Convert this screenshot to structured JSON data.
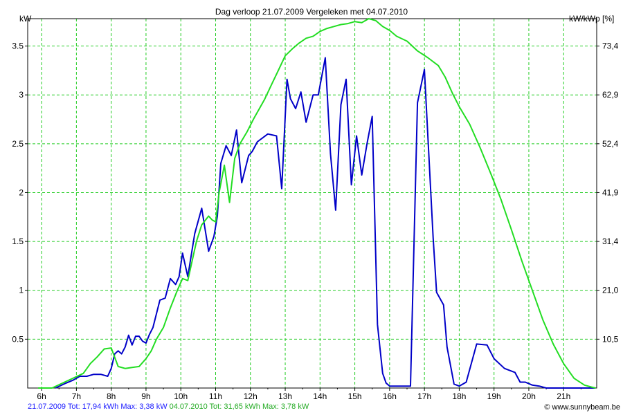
{
  "title": "Dag  verloop 21.07.2009   Vergeleken met 04.07.2010",
  "unit_left": "kW",
  "unit_right": "kW/kWp [%]",
  "footer": {
    "series1_text": "21.07.2009 Tot: 17,94 kWh Max: 3,38 kW",
    "series2_text": "04.07.2010 Tot: 31,65 kWh Max: 3,78 kW"
  },
  "credit": "© www.sunnybeam.be",
  "colors": {
    "series1": "#0000c8",
    "series2": "#22dd22",
    "grid": "#22cc22"
  },
  "chart_data": {
    "type": "line",
    "title": "Dag  verloop 21.07.2009   Vergeleken met 04.07.2010",
    "ylabel": "kW",
    "y2label": "kW/kWp [%]",
    "xlim": [
      5.6,
      21.95
    ],
    "ylim": [
      0,
      3.78
    ],
    "grid": true,
    "x_ticks": [
      6,
      7,
      8,
      9,
      10,
      11,
      12,
      13,
      14,
      15,
      16,
      17,
      18,
      19,
      20,
      21
    ],
    "x_tick_labels": [
      "6h",
      "7h",
      "8h",
      "9h",
      "10h",
      "11h",
      "12h",
      "13h",
      "14h",
      "15h",
      "16h",
      "17h",
      "18h",
      "19h",
      "20h",
      "21h"
    ],
    "y_ticks": [
      0.5,
      1,
      1.5,
      2,
      2.5,
      3,
      3.5
    ],
    "y_tick_labels": [
      "0.5",
      "1",
      "1.5",
      "2",
      "2.5",
      "3",
      "3.5"
    ],
    "y2_tick_labels": [
      "10,5",
      "21,0",
      "31,4",
      "41,9",
      "52,4",
      "62,9",
      "73,4"
    ],
    "series": [
      {
        "name": "21.07.2009",
        "color": "#0000c8",
        "x": [
          6.4,
          6.7,
          6.9,
          7.1,
          7.3,
          7.5,
          7.7,
          7.9,
          8.0,
          8.1,
          8.2,
          8.3,
          8.4,
          8.5,
          8.6,
          8.7,
          8.8,
          8.9,
          9.0,
          9.1,
          9.2,
          9.4,
          9.55,
          9.7,
          9.85,
          9.95,
          10.05,
          10.2,
          10.4,
          10.6,
          10.8,
          10.95,
          11.05,
          11.15,
          11.3,
          11.45,
          11.6,
          11.75,
          11.95,
          12.05,
          12.2,
          12.5,
          12.75,
          12.9,
          13.05,
          13.15,
          13.3,
          13.45,
          13.6,
          13.8,
          13.95,
          14.15,
          14.3,
          14.45,
          14.6,
          14.75,
          14.9,
          15.05,
          15.2,
          15.35,
          15.5,
          15.65,
          15.8,
          15.9,
          16.0,
          16.3,
          16.6,
          16.8,
          17.0,
          17.25,
          17.35,
          17.55,
          17.65,
          17.85,
          18.0,
          18.2,
          18.5,
          18.8,
          19.0,
          19.3,
          19.45,
          19.6,
          19.75,
          19.9,
          20.1,
          20.3,
          20.5,
          20.7,
          20.9,
          21.1,
          21.4,
          21.7,
          21.9
        ],
        "y": [
          0.0,
          0.05,
          0.08,
          0.12,
          0.12,
          0.14,
          0.14,
          0.12,
          0.2,
          0.35,
          0.38,
          0.35,
          0.42,
          0.54,
          0.44,
          0.53,
          0.53,
          0.48,
          0.46,
          0.55,
          0.62,
          0.9,
          0.92,
          1.12,
          1.06,
          1.14,
          1.38,
          1.14,
          1.58,
          1.84,
          1.4,
          1.55,
          1.76,
          2.3,
          2.48,
          2.38,
          2.64,
          2.1,
          2.38,
          2.42,
          2.52,
          2.6,
          2.58,
          2.04,
          3.16,
          2.96,
          2.86,
          3.03,
          2.72,
          3.0,
          3.0,
          3.38,
          2.4,
          1.82,
          2.9,
          3.16,
          2.08,
          2.58,
          2.18,
          2.5,
          2.78,
          0.65,
          0.15,
          0.05,
          0.02,
          0.02,
          0.02,
          2.92,
          3.26,
          1.54,
          0.98,
          0.85,
          0.42,
          0.04,
          0.02,
          0.06,
          0.45,
          0.44,
          0.3,
          0.2,
          0.18,
          0.16,
          0.06,
          0.06,
          0.03,
          0.02,
          0.0,
          0.0,
          0.0,
          0.0,
          0.0,
          0.0,
          0.0
        ]
      },
      {
        "name": "04.07.2010",
        "color": "#22dd22",
        "x": [
          5.9,
          6.3,
          6.6,
          6.9,
          7.2,
          7.4,
          7.6,
          7.8,
          8.0,
          8.2,
          8.4,
          8.6,
          8.8,
          9.0,
          9.15,
          9.3,
          9.5,
          9.7,
          9.9,
          10.05,
          10.2,
          10.45,
          10.6,
          10.8,
          10.9,
          11.0,
          11.1,
          11.25,
          11.4,
          11.55,
          11.7,
          11.9,
          12.1,
          12.4,
          12.6,
          12.8,
          13.0,
          13.2,
          13.4,
          13.6,
          13.8,
          14.0,
          14.2,
          14.4,
          14.6,
          14.8,
          15.0,
          15.2,
          15.4,
          15.6,
          15.8,
          16.0,
          16.2,
          16.5,
          16.8,
          17.1,
          17.4,
          17.6,
          17.8,
          18.0,
          18.3,
          18.6,
          18.9,
          19.2,
          19.5,
          19.8,
          20.1,
          20.4,
          20.7,
          21.0,
          21.3,
          21.6,
          21.8,
          21.92
        ],
        "y": [
          0.0,
          0.0,
          0.05,
          0.1,
          0.15,
          0.25,
          0.32,
          0.4,
          0.41,
          0.22,
          0.2,
          0.21,
          0.22,
          0.3,
          0.38,
          0.5,
          0.62,
          0.82,
          1.0,
          1.12,
          1.1,
          1.5,
          1.67,
          1.76,
          1.72,
          1.7,
          2.0,
          2.28,
          1.9,
          2.35,
          2.5,
          2.62,
          2.76,
          2.95,
          3.1,
          3.25,
          3.4,
          3.47,
          3.53,
          3.58,
          3.6,
          3.65,
          3.68,
          3.7,
          3.72,
          3.73,
          3.75,
          3.74,
          3.78,
          3.76,
          3.7,
          3.66,
          3.6,
          3.55,
          3.45,
          3.38,
          3.3,
          3.18,
          3.02,
          2.88,
          2.7,
          2.46,
          2.2,
          1.93,
          1.62,
          1.3,
          1.0,
          0.7,
          0.45,
          0.25,
          0.1,
          0.03,
          0.01,
          0.0
        ]
      }
    ]
  }
}
